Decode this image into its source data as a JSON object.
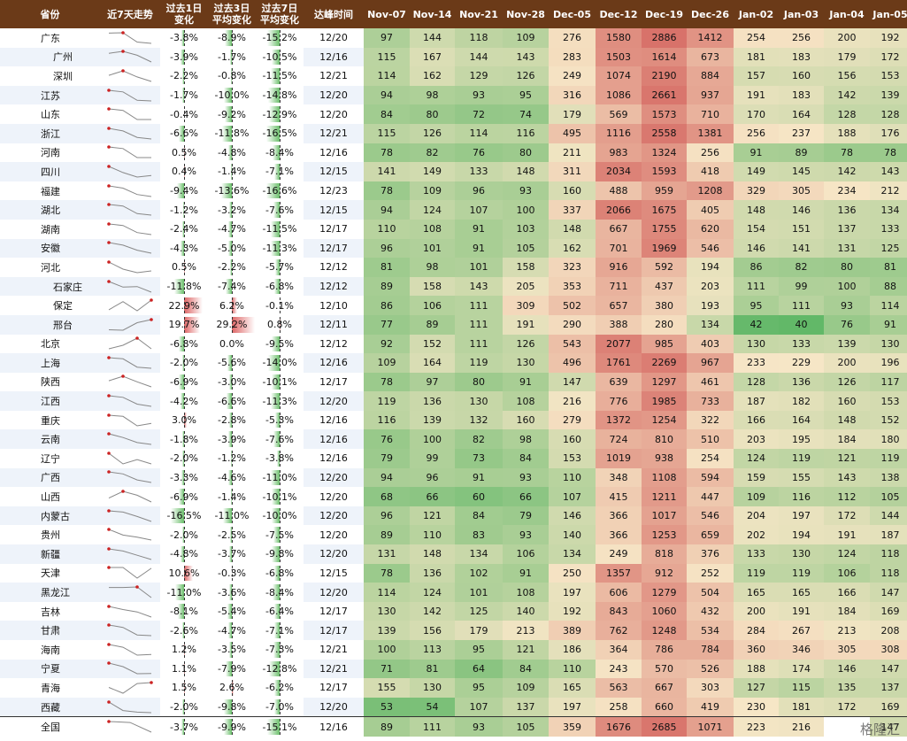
{
  "headers": {
    "province": "省份",
    "trend": "近7天走势",
    "chg1": [
      "过去1日",
      "变化"
    ],
    "chg3": [
      "过去3日",
      "平均变化"
    ],
    "chg7": [
      "过去7日",
      "平均变化"
    ],
    "peak": "达峰时间",
    "dates": [
      "Nov-07",
      "Nov-14",
      "Nov-21",
      "Nov-28",
      "Dec-05",
      "Dec-12",
      "Dec-19",
      "Dec-26",
      "Jan-02",
      "Jan-03",
      "Jan-04",
      "Jan-05"
    ]
  },
  "rows": [
    {
      "name": "广东",
      "city": false,
      "chg1": "-3.8%",
      "chg3": "-8.9%",
      "chg7": "-15.2%",
      "peak": "12/20",
      "values": [
        97,
        144,
        118,
        109,
        276,
        1580,
        2886,
        1412,
        254,
        256,
        200,
        192
      ]
    },
    {
      "name": "广州",
      "city": true,
      "chg1": "-3.9%",
      "chg3": "-1.7%",
      "chg7": "-10.5%",
      "peak": "12/16",
      "values": [
        115,
        167,
        144,
        143,
        283,
        1503,
        1614,
        673,
        181,
        183,
        179,
        172
      ]
    },
    {
      "name": "深圳",
      "city": true,
      "chg1": "-2.2%",
      "chg3": "-0.8%",
      "chg7": "-11.5%",
      "peak": "12/21",
      "values": [
        114,
        162,
        129,
        126,
        249,
        1074,
        2190,
        884,
        157,
        160,
        156,
        153
      ]
    },
    {
      "name": "江苏",
      "city": false,
      "chg1": "-1.7%",
      "chg3": "-10.0%",
      "chg7": "-14.8%",
      "peak": "12/20",
      "values": [
        94,
        98,
        93,
        95,
        316,
        1086,
        2661,
        937,
        191,
        183,
        142,
        139
      ]
    },
    {
      "name": "山东",
      "city": false,
      "chg1": "-0.4%",
      "chg3": "-9.2%",
      "chg7": "-12.9%",
      "peak": "12/20",
      "values": [
        84,
        80,
        72,
        74,
        179,
        569,
        1573,
        710,
        170,
        164,
        128,
        128
      ]
    },
    {
      "name": "浙江",
      "city": false,
      "chg1": "-6.6%",
      "chg3": "-11.8%",
      "chg7": "-16.5%",
      "peak": "12/21",
      "values": [
        115,
        126,
        114,
        116,
        495,
        1116,
        2558,
        1381,
        256,
        237,
        188,
        176
      ]
    },
    {
      "name": "河南",
      "city": false,
      "chg1": "0.5%",
      "chg3": "-4.8%",
      "chg7": "-8.4%",
      "peak": "12/16",
      "values": [
        78,
        82,
        76,
        80,
        211,
        983,
        1324,
        256,
        91,
        89,
        78,
        78
      ]
    },
    {
      "name": "四川",
      "city": false,
      "chg1": "0.4%",
      "chg3": "-1.4%",
      "chg7": "-7.1%",
      "peak": "12/15",
      "values": [
        141,
        149,
        133,
        148,
        311,
        2034,
        1593,
        418,
        149,
        145,
        142,
        143
      ]
    },
    {
      "name": "福建",
      "city": false,
      "chg1": "-9.4%",
      "chg3": "-13.6%",
      "chg7": "-16.6%",
      "peak": "12/23",
      "values": [
        78,
        109,
        96,
        93,
        160,
        488,
        959,
        1208,
        329,
        305,
        234,
        212
      ]
    },
    {
      "name": "湖北",
      "city": false,
      "chg1": "-1.2%",
      "chg3": "-3.2%",
      "chg7": "-7.6%",
      "peak": "12/15",
      "values": [
        94,
        124,
        107,
        100,
        337,
        2066,
        1675,
        405,
        148,
        146,
        136,
        134
      ]
    },
    {
      "name": "湖南",
      "city": false,
      "chg1": "-2.4%",
      "chg3": "-4.7%",
      "chg7": "-11.5%",
      "peak": "12/17",
      "values": [
        110,
        108,
        91,
        103,
        148,
        667,
        1755,
        620,
        154,
        151,
        137,
        133
      ]
    },
    {
      "name": "安徽",
      "city": false,
      "chg1": "-4.3%",
      "chg3": "-5.0%",
      "chg7": "-11.3%",
      "peak": "12/17",
      "values": [
        96,
        101,
        91,
        105,
        162,
        701,
        1969,
        546,
        146,
        141,
        131,
        125
      ]
    },
    {
      "name": "河北",
      "city": false,
      "chg1": "0.5%",
      "chg3": "-2.2%",
      "chg7": "-5.7%",
      "peak": "12/12",
      "values": [
        81,
        98,
        101,
        158,
        323,
        916,
        592,
        194,
        86,
        82,
        80,
        81
      ]
    },
    {
      "name": "石家庄",
      "city": true,
      "chg1": "-11.8%",
      "chg3": "-7.4%",
      "chg7": "-6.8%",
      "peak": "12/12",
      "values": [
        89,
        158,
        143,
        205,
        353,
        711,
        437,
        203,
        111,
        99,
        100,
        88
      ]
    },
    {
      "name": "保定",
      "city": true,
      "chg1": "22.9%",
      "chg3": "6.2%",
      "chg7": "-0.1%",
      "peak": "12/10",
      "values": [
        86,
        106,
        111,
        309,
        502,
        657,
        380,
        193,
        95,
        111,
        93,
        114
      ]
    },
    {
      "name": "邢台",
      "city": true,
      "chg1": "19.7%",
      "chg3": "29.2%",
      "chg7": "0.8%",
      "peak": "12/11",
      "values": [
        77,
        89,
        111,
        191,
        290,
        388,
        280,
        134,
        42,
        40,
        76,
        91
      ]
    },
    {
      "name": "北京",
      "city": false,
      "chg1": "-6.8%",
      "chg3": "0.0%",
      "chg7": "-9.5%",
      "peak": "12/12",
      "values": [
        92,
        152,
        111,
        126,
        543,
        2077,
        985,
        403,
        130,
        133,
        139,
        130
      ]
    },
    {
      "name": "上海",
      "city": false,
      "chg1": "-2.0%",
      "chg3": "-5.6%",
      "chg7": "-14.0%",
      "peak": "12/16",
      "values": [
        109,
        164,
        119,
        130,
        496,
        1761,
        2269,
        967,
        233,
        229,
        200,
        196
      ]
    },
    {
      "name": "陕西",
      "city": false,
      "chg1": "-6.9%",
      "chg3": "-3.0%",
      "chg7": "-10.1%",
      "peak": "12/17",
      "values": [
        78,
        97,
        80,
        91,
        147,
        639,
        1297,
        461,
        128,
        136,
        126,
        117
      ]
    },
    {
      "name": "江西",
      "city": false,
      "chg1": "-4.2%",
      "chg3": "-6.6%",
      "chg7": "-11.3%",
      "peak": "12/20",
      "values": [
        119,
        136,
        130,
        108,
        216,
        776,
        1985,
        733,
        187,
        182,
        160,
        153
      ]
    },
    {
      "name": "重庆",
      "city": false,
      "chg1": "3.0%",
      "chg3": "-2.8%",
      "chg7": "-5.3%",
      "peak": "12/16",
      "values": [
        116,
        139,
        132,
        160,
        279,
        1372,
        1254,
        322,
        166,
        164,
        148,
        152
      ]
    },
    {
      "name": "云南",
      "city": false,
      "chg1": "-1.8%",
      "chg3": "-3.9%",
      "chg7": "-7.6%",
      "peak": "12/16",
      "values": [
        76,
        100,
        82,
        98,
        160,
        724,
        810,
        510,
        203,
        195,
        184,
        180
      ]
    },
    {
      "name": "辽宁",
      "city": false,
      "chg1": "-2.0%",
      "chg3": "-1.2%",
      "chg7": "-3.8%",
      "peak": "12/16",
      "values": [
        79,
        99,
        73,
        84,
        153,
        1019,
        938,
        254,
        124,
        119,
        121,
        119
      ]
    },
    {
      "name": "广西",
      "city": false,
      "chg1": "-3.3%",
      "chg3": "-4.6%",
      "chg7": "-11.0%",
      "peak": "12/20",
      "values": [
        94,
        96,
        91,
        93,
        110,
        348,
        1108,
        594,
        159,
        155,
        143,
        138
      ]
    },
    {
      "name": "山西",
      "city": false,
      "chg1": "-6.9%",
      "chg3": "-1.4%",
      "chg7": "-10.1%",
      "peak": "12/20",
      "values": [
        68,
        66,
        60,
        66,
        107,
        415,
        1211,
        447,
        109,
        116,
        112,
        105
      ]
    },
    {
      "name": "内蒙古",
      "city": false,
      "chg1": "-16.5%",
      "chg3": "-11.0%",
      "chg7": "-10.0%",
      "peak": "12/20",
      "values": [
        96,
        121,
        84,
        79,
        146,
        366,
        1017,
        546,
        204,
        197,
        172,
        144
      ]
    },
    {
      "name": "贵州",
      "city": false,
      "chg1": "-2.0%",
      "chg3": "-2.5%",
      "chg7": "-7.5%",
      "peak": "12/20",
      "values": [
        89,
        110,
        83,
        93,
        140,
        366,
        1253,
        659,
        202,
        194,
        191,
        187
      ]
    },
    {
      "name": "新疆",
      "city": false,
      "chg1": "-4.8%",
      "chg3": "-3.7%",
      "chg7": "-9.8%",
      "peak": "12/20",
      "values": [
        131,
        148,
        134,
        106,
        134,
        249,
        818,
        376,
        133,
        130,
        124,
        118
      ]
    },
    {
      "name": "天津",
      "city": false,
      "chg1": "10.6%",
      "chg3": "-0.3%",
      "chg7": "-6.8%",
      "peak": "12/15",
      "values": [
        78,
        136,
        102,
        91,
        250,
        1357,
        912,
        252,
        119,
        119,
        106,
        118
      ]
    },
    {
      "name": "黑龙江",
      "city": false,
      "chg1": "-11.0%",
      "chg3": "-3.6%",
      "chg7": "-8.4%",
      "peak": "12/20",
      "values": [
        114,
        124,
        101,
        108,
        197,
        606,
        1279,
        504,
        165,
        165,
        166,
        147
      ]
    },
    {
      "name": "吉林",
      "city": false,
      "chg1": "-8.1%",
      "chg3": "-5.4%",
      "chg7": "-6.4%",
      "peak": "12/17",
      "values": [
        130,
        142,
        125,
        140,
        192,
        843,
        1060,
        432,
        200,
        191,
        184,
        169
      ]
    },
    {
      "name": "甘肃",
      "city": false,
      "chg1": "-2.6%",
      "chg3": "-4.7%",
      "chg7": "-7.1%",
      "peak": "12/17",
      "values": [
        139,
        156,
        179,
        213,
        389,
        762,
        1248,
        534,
        284,
        267,
        213,
        208
      ]
    },
    {
      "name": "海南",
      "city": false,
      "chg1": "1.2%",
      "chg3": "-3.5%",
      "chg7": "-7.3%",
      "peak": "12/21",
      "values": [
        100,
        113,
        95,
        121,
        186,
        364,
        786,
        784,
        360,
        346,
        305,
        308
      ]
    },
    {
      "name": "宁夏",
      "city": false,
      "chg1": "1.1%",
      "chg3": "-7.9%",
      "chg7": "-12.8%",
      "peak": "12/21",
      "values": [
        71,
        81,
        64,
        84,
        110,
        243,
        570,
        526,
        188,
        174,
        146,
        147
      ]
    },
    {
      "name": "青海",
      "city": false,
      "chg1": "1.5%",
      "chg3": "2.6%",
      "chg7": "-6.2%",
      "peak": "12/17",
      "values": [
        155,
        130,
        95,
        109,
        165,
        563,
        667,
        303,
        127,
        115,
        135,
        137
      ]
    },
    {
      "name": "西藏",
      "city": false,
      "chg1": "-2.0%",
      "chg3": "-9.8%",
      "chg7": "-7.0%",
      "peak": "12/20",
      "values": [
        53,
        54,
        107,
        137,
        197,
        258,
        660,
        419,
        230,
        181,
        172,
        169
      ]
    },
    {
      "name": "全国",
      "city": false,
      "total": true,
      "chg1": "-3.7%",
      "chg3": "-9.9%",
      "chg7": "-15.1%",
      "peak": "12/16",
      "values": [
        89,
        111,
        93,
        105,
        359,
        1676,
        2685,
        1071,
        223,
        216,
        null,
        147
      ]
    }
  ],
  "watermark": "格隆汇",
  "colors": {
    "header": "#6b3a18",
    "low": "#62b868",
    "mid": "#f6e6c6",
    "high": "#d8726a",
    "posBar": "#dd6565",
    "negBar": "#6cbf6c"
  },
  "chart_data": {
    "type": "heatmap",
    "title": "",
    "categories": [
      "Nov-07",
      "Nov-14",
      "Nov-21",
      "Nov-28",
      "Dec-05",
      "Dec-12",
      "Dec-19",
      "Dec-26",
      "Jan-02",
      "Jan-03",
      "Jan-04",
      "Jan-05"
    ],
    "row_labels": [
      "广东",
      "广州",
      "深圳",
      "江苏",
      "山东",
      "浙江",
      "河南",
      "四川",
      "福建",
      "湖北",
      "湖南",
      "安徽",
      "河北",
      "石家庄",
      "保定",
      "邢台",
      "北京",
      "上海",
      "陕西",
      "江西",
      "重庆",
      "云南",
      "辽宁",
      "广西",
      "山西",
      "内蒙古",
      "贵州",
      "新疆",
      "天津",
      "黑龙江",
      "吉林",
      "甘肃",
      "海南",
      "宁夏",
      "青海",
      "西藏",
      "全国"
    ],
    "note_columns": [
      "近7天走势",
      "过去1日变化",
      "过去3日平均变化",
      "过去7日平均变化",
      "达峰时间"
    ]
  }
}
